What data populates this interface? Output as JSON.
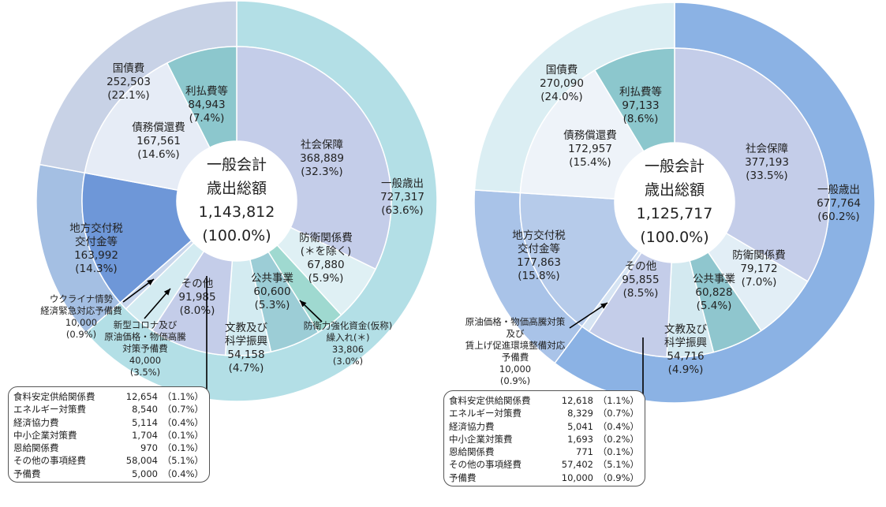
{
  "chart_data": [
    {
      "type": "pie",
      "center_label": [
        "一般会計",
        "歳出総額",
        "1,143,812",
        "(100.0%)"
      ],
      "outer": [
        {
          "name": "一般歳出",
          "value": 727317,
          "pct": "(63.6%)",
          "color": "#b3dfe6"
        },
        {
          "name": "地方交付税交付金等",
          "value": 163992,
          "pct": "(14.3%)",
          "color": "#a4bfe3"
        },
        {
          "name": "国債費",
          "value": 252503,
          "pct": "(22.1%)",
          "color": "#c8d2e6"
        }
      ],
      "inner": [
        {
          "name": "社会保障",
          "value": 368889,
          "pct": "(32.3%)",
          "color": "#c4cde9"
        },
        {
          "name": "防衛関係費(＊を除く)",
          "value": 67880,
          "pct": "(5.9%)",
          "color": "#dff0f4"
        },
        {
          "name": "防衛力強化資金(仮称)繰入れ(＊)",
          "value": 33806,
          "pct": "(3.0%)",
          "color": "#9fd9d0"
        },
        {
          "name": "公共事業",
          "value": 60600,
          "pct": "(5.3%)",
          "color": "#9ccdd6"
        },
        {
          "name": "文教及び科学振興",
          "value": 54158,
          "pct": "(4.7%)",
          "color": "#d3ebf1"
        },
        {
          "name": "その他",
          "value": 91985,
          "pct": "(8.0%)",
          "color": "#c4cde9"
        },
        {
          "name": "新型コロナ及び原油価格・物価高騰対策予備費",
          "value": 40000,
          "pct": "(3.5%)",
          "color": "#d3ebf1"
        },
        {
          "name": "ウクライナ情勢経済緊急対応予備費",
          "value": 10000,
          "pct": "(0.9%)",
          "color": "#c8d6ec"
        },
        {
          "name": "地方交付税交付金等",
          "value": 163992,
          "pct": "(14.3%)",
          "color": "#6e97d8"
        },
        {
          "name": "債務償還費",
          "value": 167561,
          "pct": "(14.6%)",
          "color": "#e6ecf6"
        },
        {
          "name": "利払費等",
          "value": 84943,
          "pct": "(7.4%)",
          "color": "#8cc7cd"
        }
      ],
      "labels": {
        "outer_general": [
          "一般歳出",
          "727,317",
          "(63.6%)"
        ],
        "outer_debt": [
          "国債費",
          "252,503",
          "(22.1%)"
        ],
        "local_tax": [
          "地方交付税",
          "交付金等",
          "163,992",
          "(14.3%)"
        ],
        "interest": [
          "利払費等",
          "84,943",
          "(7.4%)"
        ],
        "redemption": [
          "債務償還費",
          "167,561",
          "(14.6%)"
        ],
        "social": [
          "社会保障",
          "368,889",
          "(32.3%)"
        ],
        "defense": [
          "防衛関係費",
          "(＊を除く)",
          "67,880",
          "(5.9%)"
        ],
        "public_works": [
          "公共事業",
          "60,600",
          "(5.3%)"
        ],
        "education": [
          "文教及び",
          "科学振興",
          "54,158",
          "(4.7%)"
        ],
        "other": [
          "その他",
          "91,985",
          "(8.0%)"
        ],
        "defense_fund": [
          "防衛力強化資金(仮称)",
          "繰入れ(＊)",
          "33,806",
          "(3.0%)"
        ],
        "ukraine": [
          "ウクライナ情勢",
          "経済緊急対応予備費",
          "10,000",
          "(0.9%)"
        ],
        "covid": [
          "新型コロナ及び",
          "原油価格・物価高騰",
          "対策予備費",
          "40,000",
          "(3.5%)"
        ]
      },
      "breakdown": [
        {
          "name": "食料安定供給関係費",
          "value": "12,654",
          "pct": "（1.1%）"
        },
        {
          "name": "エネルギー対策費",
          "value": "8,540",
          "pct": "（0.7%）"
        },
        {
          "name": "経済協力費",
          "value": "5,114",
          "pct": "（0.4%）"
        },
        {
          "name": "中小企業対策費",
          "value": "1,704",
          "pct": "（0.1%）"
        },
        {
          "name": "恩給関係費",
          "value": "970",
          "pct": "（0.1%）"
        },
        {
          "name": "その他の事項経費",
          "value": "58,004",
          "pct": "（5.1%）"
        },
        {
          "name": "予備費",
          "value": "5,000",
          "pct": "（0.4%）"
        }
      ]
    },
    {
      "type": "pie",
      "center_label": [
        "一般会計",
        "歳出総額",
        "1,125,717",
        "(100.0%)"
      ],
      "outer": [
        {
          "name": "一般歳出",
          "value": 677764,
          "pct": "(60.2%)",
          "color": "#8bb2e4"
        },
        {
          "name": "地方交付税交付金等",
          "value": 177863,
          "pct": "(15.8%)",
          "color": "#a9c3e8"
        },
        {
          "name": "国債費",
          "value": 270090,
          "pct": "(24.0%)",
          "color": "#dbeef3"
        }
      ],
      "inner": [
        {
          "name": "社会保障",
          "value": 377193,
          "pct": "(33.5%)",
          "color": "#c4cde9"
        },
        {
          "name": "防衛関係費",
          "value": 79172,
          "pct": "(7.0%)",
          "color": "#e2eef6"
        },
        {
          "name": "公共事業",
          "value": 60828,
          "pct": "(5.4%)",
          "color": "#8fc6ce"
        },
        {
          "name": "文教及び科学振興",
          "value": 54716,
          "pct": "(4.9%)",
          "color": "#d3e9f0"
        },
        {
          "name": "その他",
          "value": 95855,
          "pct": "(8.5%)",
          "color": "#c4cde9"
        },
        {
          "name": "原油価格・物価高騰対策及び賃上げ促進環境整備対応予備費",
          "value": 10000,
          "pct": "(0.9%)",
          "color": "#d6e4f3"
        },
        {
          "name": "地方交付税交付金等",
          "value": 177863,
          "pct": "(15.8%)",
          "color": "#b6cbea"
        },
        {
          "name": "債務償還費",
          "value": 172957,
          "pct": "(15.4%)",
          "color": "#eef3f9"
        },
        {
          "name": "利払費等",
          "value": 97133,
          "pct": "(8.6%)",
          "color": "#8cc7cd"
        }
      ],
      "labels": {
        "outer_general": [
          "一般歳出",
          "677,764",
          "(60.2%)"
        ],
        "outer_debt": [
          "国債費",
          "270,090",
          "(24.0%)"
        ],
        "local_tax": [
          "地方交付税",
          "交付金等",
          "177,863",
          "(15.8%)"
        ],
        "interest": [
          "利払費等",
          "97,133",
          "(8.6%)"
        ],
        "redemption": [
          "債務償還費",
          "172,957",
          "(15.4%)"
        ],
        "social": [
          "社会保障",
          "377,193",
          "(33.5%)"
        ],
        "defense": [
          "防衛関係費",
          "79,172",
          "(7.0%)"
        ],
        "public_works": [
          "公共事業",
          "60,828",
          "(5.4%)"
        ],
        "education": [
          "文教及び",
          "科学振興",
          "54,716",
          "(4.9%)"
        ],
        "other": [
          "その他",
          "95,855",
          "(8.5%)"
        ],
        "reserve": [
          "原油価格・物価高騰対策",
          "及び",
          "賃上げ促進環境整備対応",
          "予備費",
          "10,000",
          "(0.9%)"
        ]
      },
      "breakdown": [
        {
          "name": "食料安定供給関係費",
          "value": "12,618",
          "pct": "（1.1%）"
        },
        {
          "name": "エネルギー対策費",
          "value": "8,329",
          "pct": "（0.7%）"
        },
        {
          "name": "経済協力費",
          "value": "5,041",
          "pct": "（0.4%）"
        },
        {
          "name": "中小企業対策費",
          "value": "1,693",
          "pct": "（0.2%）"
        },
        {
          "name": "恩給関係費",
          "value": "771",
          "pct": "（0.1%）"
        },
        {
          "name": "その他の事項経費",
          "value": "57,402",
          "pct": "（5.1%）"
        },
        {
          "name": "予備費",
          "value": "10,000",
          "pct": "（0.9%）"
        }
      ]
    }
  ]
}
